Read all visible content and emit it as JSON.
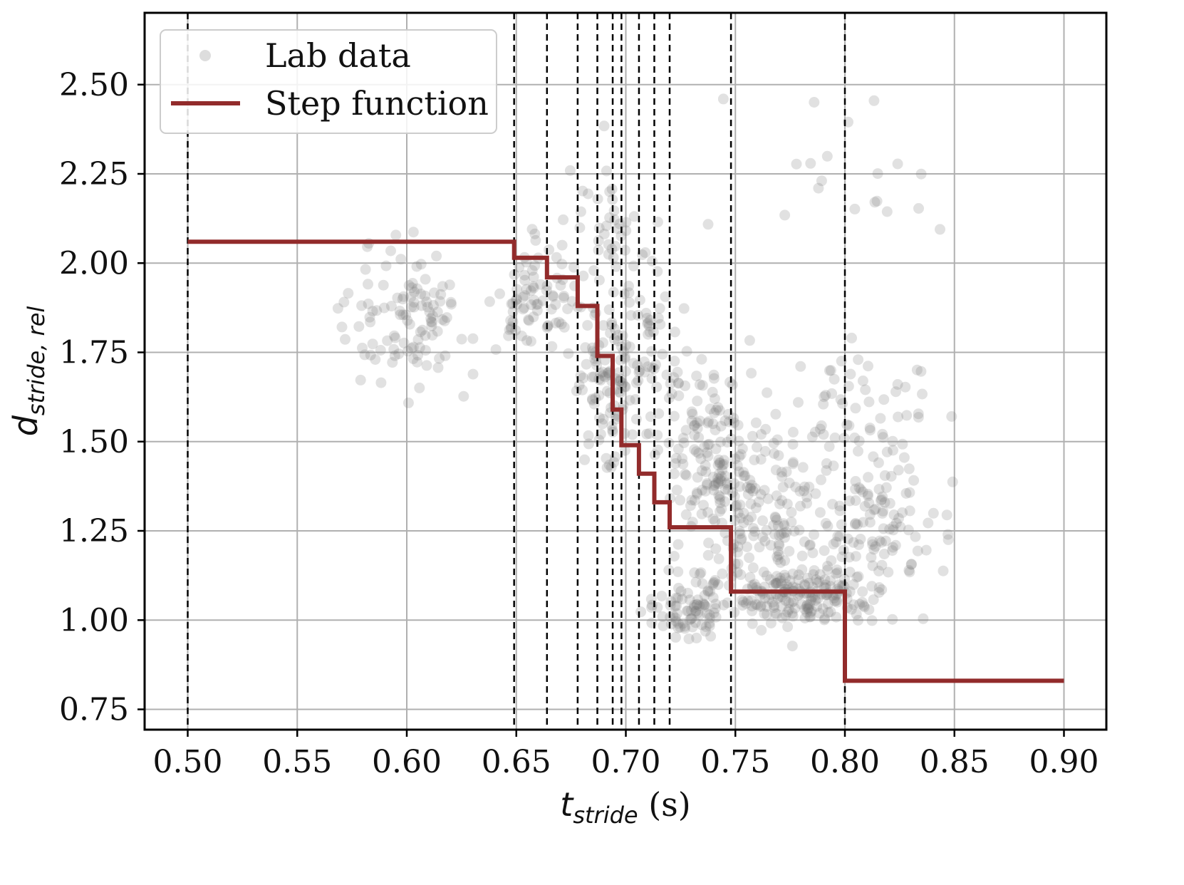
{
  "chart_data": {
    "type": "scatter",
    "xlabel": {
      "main": "t",
      "sub": "stride",
      "unit": " (s)"
    },
    "ylabel": {
      "main": "d",
      "sub": "stride, rel"
    },
    "xlim": [
      0.48,
      0.92
    ],
    "ylim": [
      0.72,
      2.72
    ],
    "xticks": [
      "0.50",
      "0.55",
      "0.60",
      "0.65",
      "0.70",
      "0.75",
      "0.80",
      "0.85",
      "0.90"
    ],
    "yticks": [
      "0.75",
      "1.00",
      "1.25",
      "1.50",
      "1.75",
      "2.00",
      "2.25",
      "2.50"
    ],
    "grid": true,
    "legend_position": "top-left",
    "colors": {
      "scatter": "#777777",
      "step": "#922b2b",
      "boundary": "#000000",
      "grid": "#b0b0b0"
    },
    "series": [
      {
        "name": "Lab data",
        "type": "scatter"
      },
      {
        "name": "Step function",
        "type": "step",
        "edges": [
          0.5,
          0.649,
          0.664,
          0.678,
          0.687,
          0.694,
          0.698,
          0.706,
          0.713,
          0.72,
          0.748,
          0.8,
          0.9
        ],
        "values": [
          2.06,
          2.015,
          1.96,
          1.88,
          1.74,
          1.59,
          1.49,
          1.41,
          1.33,
          1.26,
          1.08,
          0.83
        ]
      }
    ],
    "boundaries": [
      0.5,
      0.649,
      0.664,
      0.678,
      0.687,
      0.694,
      0.698,
      0.706,
      0.713,
      0.72,
      0.748,
      0.8
    ],
    "scatter_clusters": [
      {
        "center": [
          0.6,
          1.85
        ],
        "spread": [
          0.025,
          0.16
        ],
        "count": 110
      },
      {
        "center": [
          0.66,
          1.9
        ],
        "spread": [
          0.018,
          0.12
        ],
        "count": 80
      },
      {
        "center": [
          0.69,
          1.65
        ],
        "spread": [
          0.012,
          0.2
        ],
        "count": 90
      },
      {
        "center": [
          0.71,
          1.75
        ],
        "spread": [
          0.015,
          0.18
        ],
        "count": 70
      },
      {
        "center": [
          0.74,
          1.45
        ],
        "spread": [
          0.02,
          0.22
        ],
        "count": 160
      },
      {
        "center": [
          0.77,
          1.3
        ],
        "spread": [
          0.025,
          0.2
        ],
        "count": 120
      },
      {
        "center": [
          0.78,
          1.07
        ],
        "spread": [
          0.03,
          0.08
        ],
        "count": 200
      },
      {
        "center": [
          0.73,
          1.03
        ],
        "spread": [
          0.015,
          0.07
        ],
        "count": 80
      },
      {
        "center": [
          0.81,
          1.55
        ],
        "spread": [
          0.03,
          0.22
        ],
        "count": 70
      },
      {
        "center": [
          0.82,
          1.25
        ],
        "spread": [
          0.02,
          0.15
        ],
        "count": 80
      },
      {
        "center": [
          0.69,
          2.1
        ],
        "spread": [
          0.02,
          0.15
        ],
        "count": 40
      },
      {
        "center": [
          0.8,
          2.25
        ],
        "spread": [
          0.04,
          0.2
        ],
        "count": 20
      }
    ]
  }
}
